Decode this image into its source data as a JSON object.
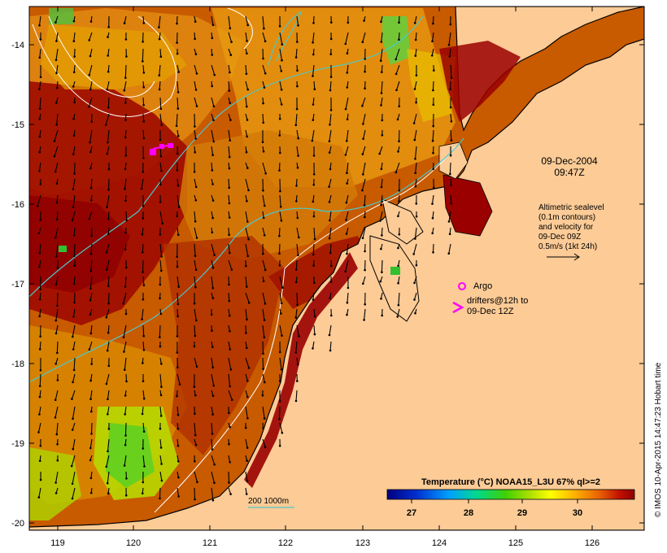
{
  "map": {
    "lon_ticks": [
      "119",
      "120",
      "121",
      "122",
      "123",
      "124",
      "125",
      "126"
    ],
    "lat_ticks": [
      "-14",
      "-15",
      "-16",
      "-17",
      "-18",
      "-19",
      "-20"
    ],
    "date_label": "09-Dec-2004",
    "time_label": "09:47Z",
    "legend_lines": [
      "Altimetric sealevel",
      "(0.1m contours)",
      "and velocity for",
      "09-Dec 09Z",
      "0.5m/s (1kt 24h)"
    ],
    "argo_label": "Argo",
    "drifters_label_line1": "drifters@12h to",
    "drifters_label_line2": "09-Dec 12Z",
    "bathy_label": "200  1000m",
    "colorbar_title": "Temperature (°C) NOAA15_L3U 67% ql>=2",
    "colorbar_ticks": [
      "27",
      "28",
      "29",
      "30"
    ],
    "credit": "© IMOS 10-Apr-2015 14:47:23 Hobart time",
    "colors": {
      "sea_hot": "#9a0000",
      "sea_mid": "#d96b00",
      "sea_warm": "#e8a000",
      "sea_cool": "#b8d400",
      "land": "#fccb96",
      "contour_white": "#ffffff",
      "bathy_cyan": "#4fc7c7",
      "marker_magenta": "#ff00ff"
    }
  }
}
